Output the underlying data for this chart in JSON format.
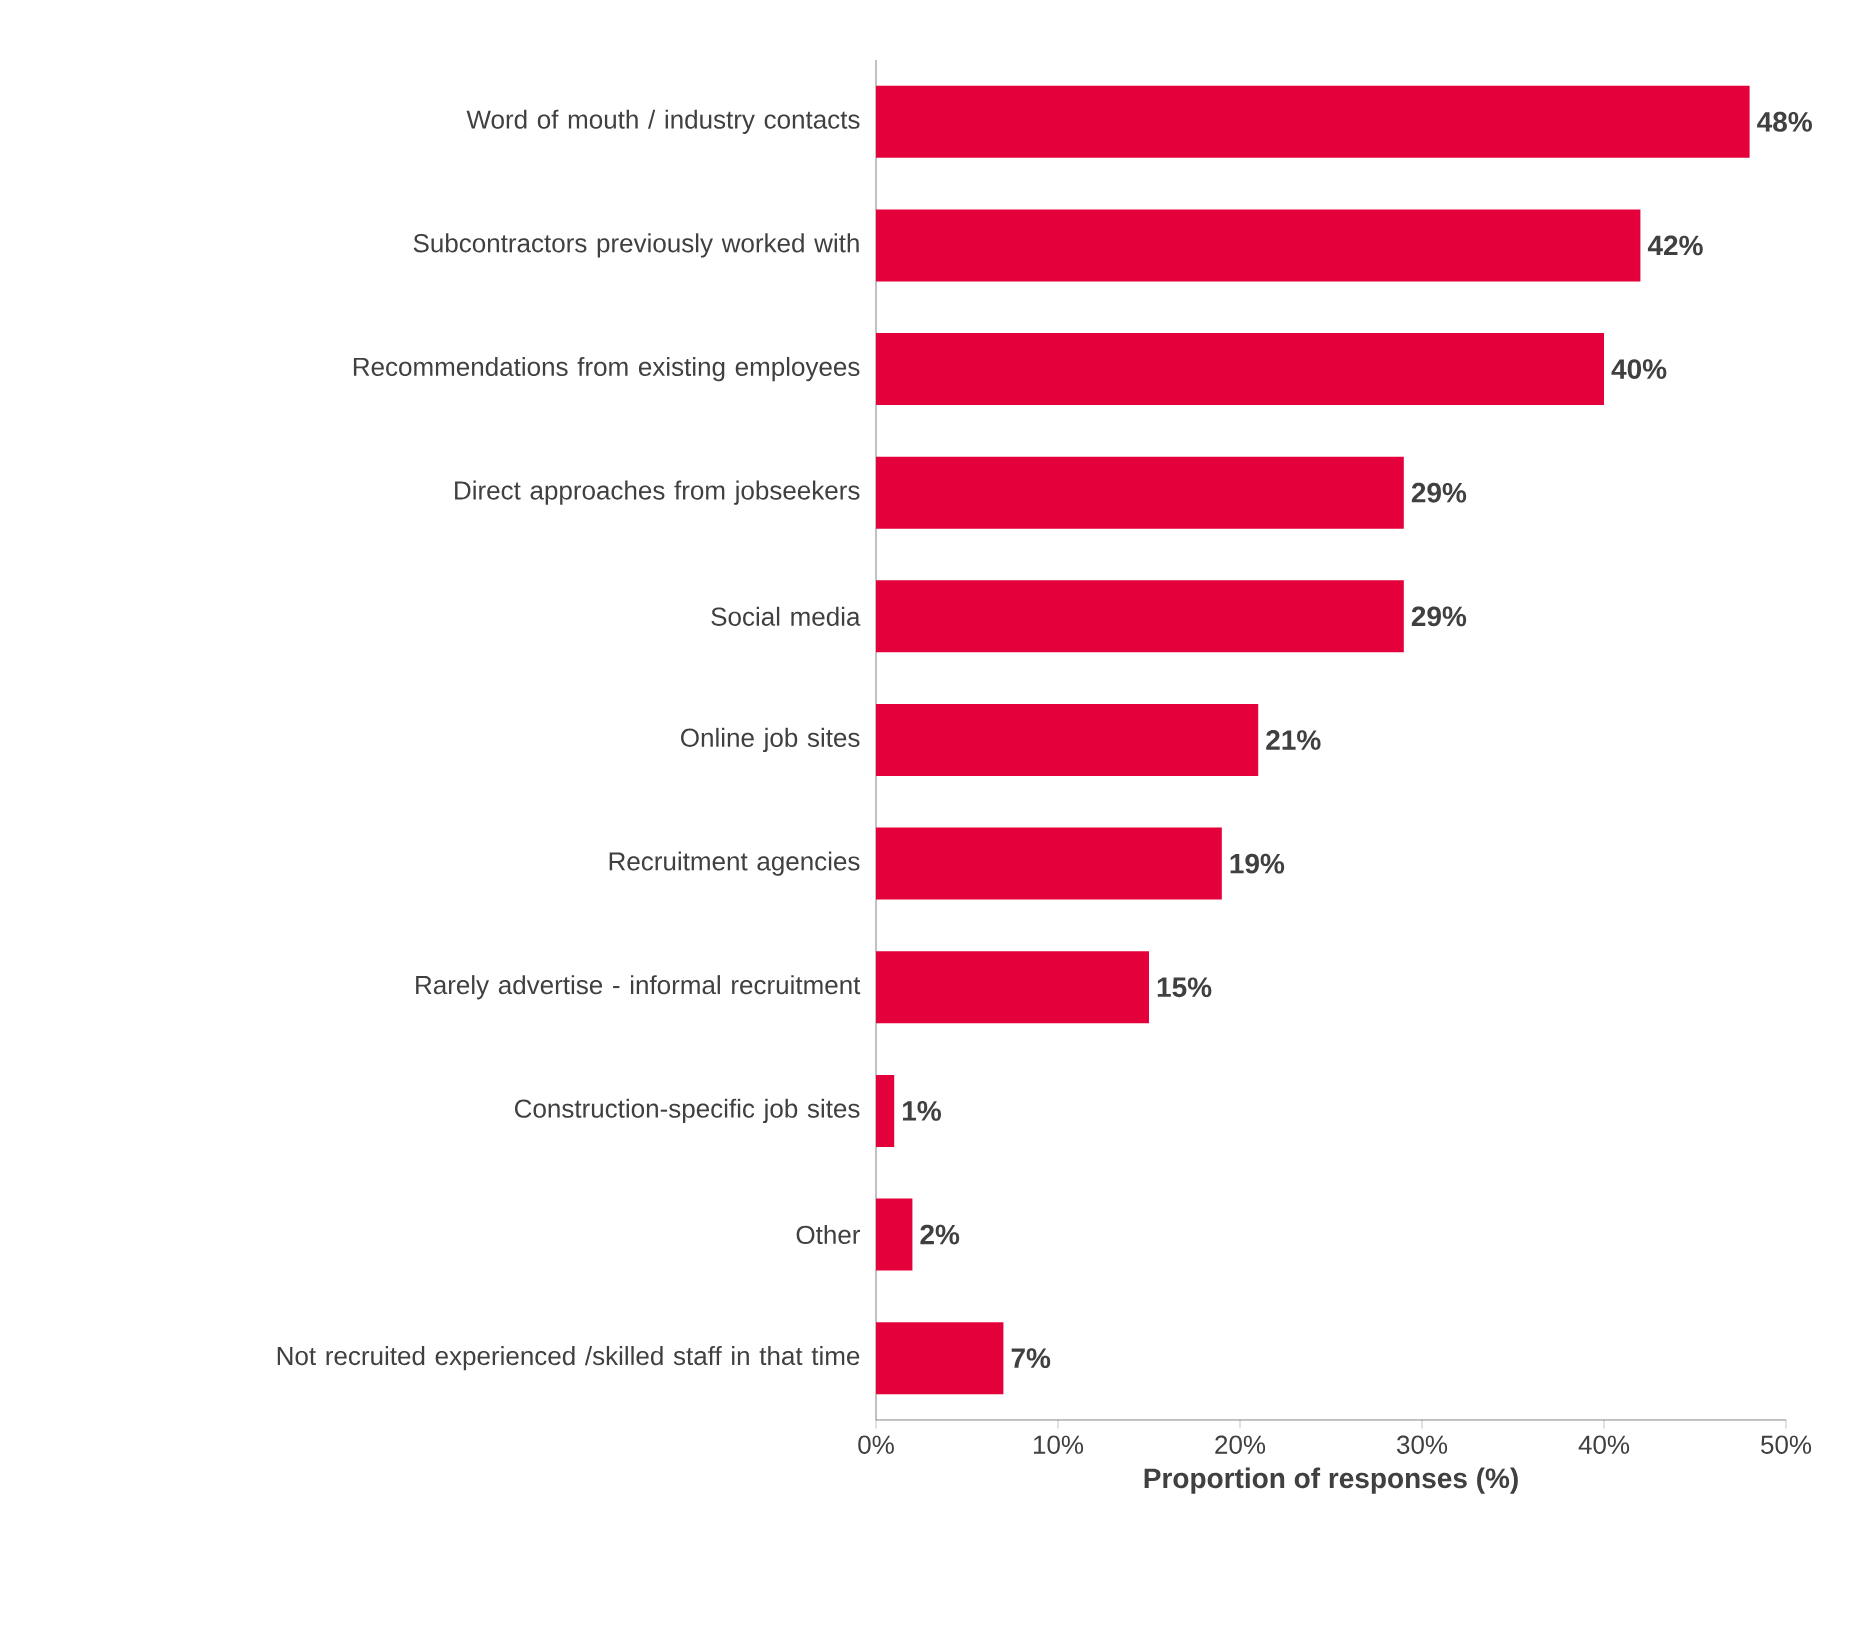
{
  "chart_data": {
    "type": "bar",
    "orientation": "horizontal",
    "xlabel": "Proportion of responses (%)",
    "categories": [
      "Word of mouth / industry contacts",
      "Subcontractors previously worked with",
      "Recommendations from existing employees",
      "Direct approaches from jobseekers",
      "Social media",
      "Online job sites",
      "Recruitment agencies",
      "Rarely advertise - informal recruitment",
      "Construction-specific job sites",
      "Other",
      "Not recruited experienced /skilled staff in that time"
    ],
    "values": [
      48,
      42,
      40,
      29,
      29,
      21,
      19,
      15,
      1,
      2,
      7
    ],
    "value_labels": [
      "48%",
      "42%",
      "40%",
      "29%",
      "29%",
      "21%",
      "19%",
      "15%",
      "1%",
      "2%",
      "7%"
    ],
    "color": "#e4003b",
    "xlim": [
      0,
      50
    ],
    "xticks": [
      {
        "value": 0,
        "label": "0%"
      },
      {
        "value": 10,
        "label": "10%"
      },
      {
        "value": 20,
        "label": "20%"
      },
      {
        "value": 30,
        "label": "30%"
      },
      {
        "value": 40,
        "label": "40%"
      },
      {
        "value": 50,
        "label": "50%"
      }
    ]
  }
}
